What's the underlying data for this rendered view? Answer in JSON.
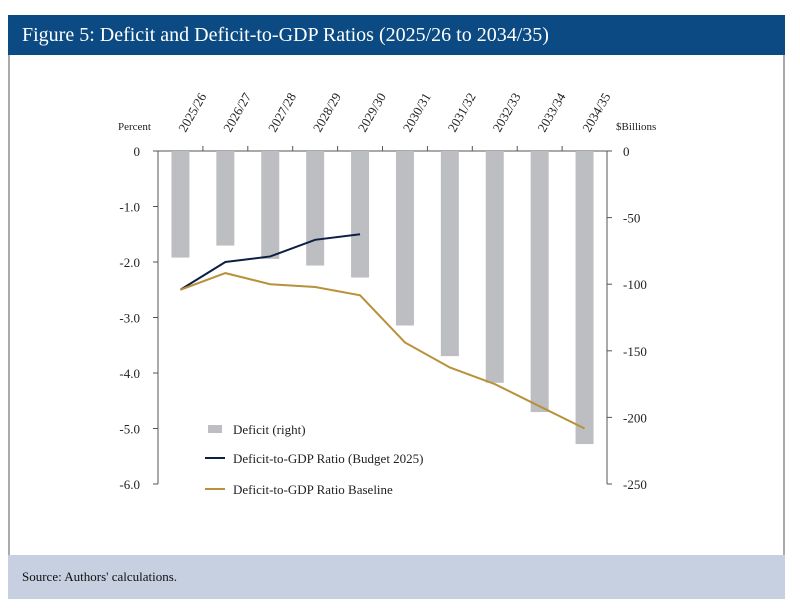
{
  "title": "Figure 5: Deficit and Deficit-to-GDP Ratios (2025/26 to 2034/35)",
  "source": "Source: Authors' calculations.",
  "chart_data": {
    "type": "bar+line",
    "categories": [
      "2025/26",
      "2026/27",
      "2027/28",
      "2028/29",
      "2029/30",
      "2030/31",
      "2031/32",
      "2032/33",
      "2033/34",
      "2034/35"
    ],
    "left_axis": {
      "label": "Percent",
      "range": [
        -6.0,
        0
      ],
      "ticks": [
        "0",
        "-1.0",
        "-2.0",
        "-3.0",
        "-4.0",
        "-5.0",
        "-6.0"
      ]
    },
    "right_axis": {
      "label": "$Billions",
      "range": [
        -250,
        0
      ],
      "ticks": [
        "0",
        "-50",
        "-100",
        "-150",
        "-200",
        "-250"
      ]
    },
    "grid": false,
    "legend_position": "bottom-left inside",
    "series": [
      {
        "name": "Deficit (right)",
        "type": "bar",
        "axis": "right",
        "color": "#bcbec1",
        "values": [
          -80,
          -71,
          -81,
          -86,
          -95,
          -131,
          -154,
          -174,
          -196,
          -220
        ]
      },
      {
        "name": "Deficit-to-GDP Ratio (Budget 2025)",
        "type": "line",
        "axis": "left",
        "color": "#0d1f45",
        "values": [
          -2.5,
          -2.0,
          -1.9,
          -1.6,
          -1.5,
          null,
          null,
          null,
          null,
          null
        ]
      },
      {
        "name": "Deficit-to-GDP Ratio Baseline",
        "type": "line",
        "axis": "left",
        "color": "#b8913a",
        "values": [
          -2.5,
          -2.2,
          -2.4,
          -2.45,
          -2.6,
          -3.45,
          -3.9,
          -4.2,
          -4.6,
          -5.0
        ]
      }
    ]
  }
}
